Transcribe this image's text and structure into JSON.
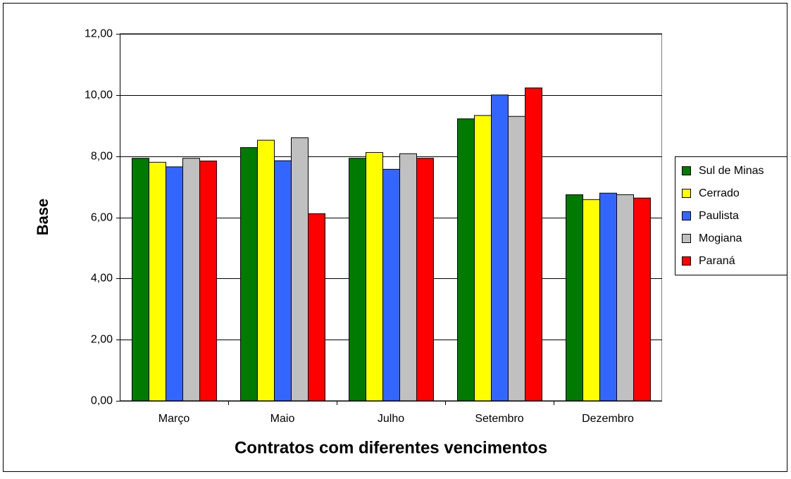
{
  "chart_data": {
    "type": "bar",
    "x_label": "Contratos com diferentes vencimentos",
    "y_label": "Base",
    "categories": [
      "Março",
      "Maio",
      "Julho",
      "Setembro",
      "Dezembro"
    ],
    "series": [
      {
        "name": "Sul de Minas",
        "color": "#007a00",
        "values": [
          7.93,
          8.28,
          7.93,
          9.22,
          6.74
        ]
      },
      {
        "name": "Cerrado",
        "color": "#ffff00",
        "values": [
          7.8,
          8.52,
          8.12,
          9.33,
          6.58
        ]
      },
      {
        "name": "Paulista",
        "color": "#3366ff",
        "values": [
          7.65,
          7.85,
          7.57,
          10.0,
          6.79
        ]
      },
      {
        "name": "Mogiana",
        "color": "#c0c0c0",
        "values": [
          7.93,
          8.6,
          8.08,
          9.3,
          6.74
        ]
      },
      {
        "name": "Paraná",
        "color": "#ff0000",
        "values": [
          7.84,
          6.12,
          7.93,
          10.23,
          6.63
        ]
      }
    ],
    "ylim": [
      0,
      12
    ],
    "yticks": [
      {
        "value": 0,
        "label": "0,00"
      },
      {
        "value": 2,
        "label": "2,00"
      },
      {
        "value": 4,
        "label": "4,00"
      },
      {
        "value": 6,
        "label": "6,00"
      },
      {
        "value": 8,
        "label": "8,00"
      },
      {
        "value": 10,
        "label": "10,00"
      },
      {
        "value": 12,
        "label": "12,00"
      }
    ],
    "grid": true,
    "legend": "right"
  }
}
